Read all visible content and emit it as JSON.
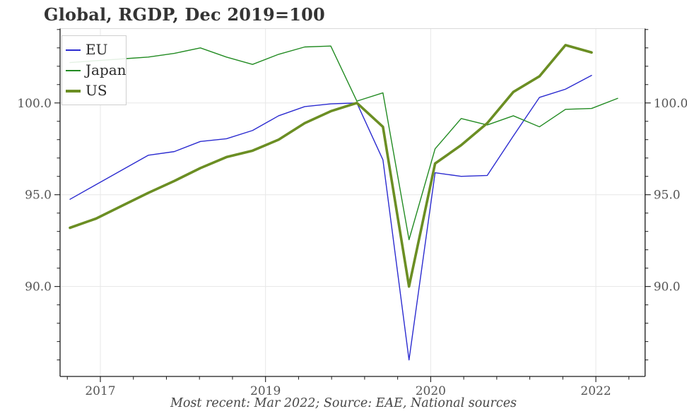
{
  "title": "Global, RGDP, Dec 2019=100",
  "caption": "Most recent: Mar 2022; Source: EAE, National sources",
  "chart_data": {
    "type": "line",
    "title": "Global, RGDP, Dec 2019=100",
    "index_note": "Dec 2019 = 100",
    "most_recent": "Mar 2022",
    "sources": "EAE, National sources",
    "frequency": "quarterly",
    "x_quarters": [
      "2017-Q1",
      "2017-Q2",
      "2017-Q3",
      "2017-Q4",
      "2018-Q1",
      "2018-Q2",
      "2018-Q3",
      "2018-Q4",
      "2019-Q1",
      "2019-Q2",
      "2019-Q3",
      "2019-Q4",
      "2020-Q1",
      "2020-Q2",
      "2020-Q3",
      "2020-Q4",
      "2021-Q1",
      "2021-Q2",
      "2021-Q3",
      "2021-Q4",
      "2022-Q1",
      "2022-Q2"
    ],
    "series": [
      {
        "name": "EU",
        "color": "#2b2bd0",
        "width": 1.4,
        "values": [
          94.75,
          95.55,
          96.35,
          97.15,
          97.35,
          97.9,
          98.05,
          98.5,
          99.3,
          99.8,
          99.95,
          100.0,
          96.9,
          86.0,
          96.2,
          96.0,
          96.05,
          98.2,
          100.3,
          100.75,
          101.5
        ]
      },
      {
        "name": "Japan",
        "color": "#228b22",
        "width": 1.4,
        "values": [
          102.2,
          102.3,
          102.4,
          102.5,
          102.7,
          103.0,
          102.5,
          102.1,
          102.65,
          103.05,
          103.1,
          100.1,
          100.55,
          92.55,
          97.5,
          99.15,
          98.8,
          99.3,
          98.7,
          99.65,
          99.7,
          100.25
        ]
      },
      {
        "name": "US",
        "color": "#6b8e23",
        "width": 3.6,
        "values": [
          93.2,
          93.7,
          94.4,
          95.1,
          95.75,
          96.45,
          97.05,
          97.4,
          98.0,
          98.9,
          99.55,
          100.0,
          98.7,
          90.0,
          96.7,
          97.7,
          98.9,
          100.6,
          101.45,
          103.15,
          102.75
        ]
      }
    ],
    "x_ticks": {
      "labels": [
        "2017",
        "2019",
        "2020",
        "2022"
      ],
      "positions": [
        1.165,
        7.498,
        13.831,
        20.164
      ]
    },
    "y_ticks": {
      "labels": [
        "90.0",
        "95.0",
        "100.0"
      ],
      "values": [
        90,
        95,
        100
      ],
      "minor_step": 1.0
    },
    "xlim": [
      -0.3794,
      22.0515
    ],
    "ylim": [
      85.1,
      104.05
    ],
    "grid": "on",
    "legend_position": "upper-left",
    "colors": {
      "grid": "#e7e7e7",
      "spine": "#1a1a1a",
      "top_border": "#d9d9d9",
      "tick_text": "#555555"
    }
  }
}
